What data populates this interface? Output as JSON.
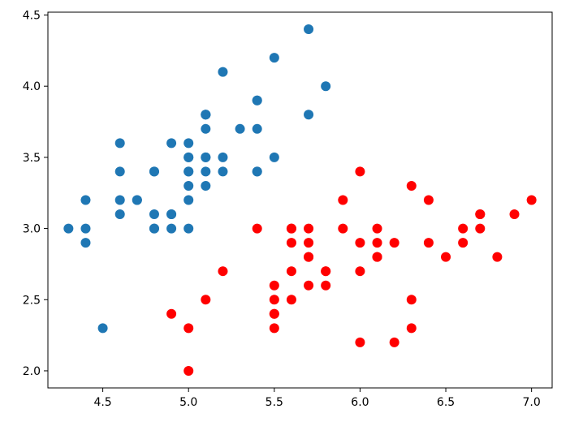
{
  "chart_data": {
    "type": "scatter",
    "title": "",
    "xlabel": "",
    "ylabel": "",
    "xlim": [
      4.18,
      7.12
    ],
    "ylim": [
      1.88,
      4.52
    ],
    "xticks": [
      4.5,
      5.0,
      5.5,
      6.0,
      6.5,
      7.0
    ],
    "xtick_labels": [
      "4.5",
      "5.0",
      "5.5",
      "6.0",
      "6.5",
      "7.0"
    ],
    "yticks": [
      2.0,
      2.5,
      3.0,
      3.5,
      4.0,
      4.5
    ],
    "ytick_labels": [
      "2.0",
      "2.5",
      "3.0",
      "3.5",
      "4.0",
      "4.5"
    ],
    "grid": false,
    "legend": "none",
    "series": [
      {
        "color": "#1f77b4",
        "points": [
          [
            5.1,
            3.5
          ],
          [
            4.9,
            3.0
          ],
          [
            4.7,
            3.2
          ],
          [
            4.6,
            3.1
          ],
          [
            5.0,
            3.6
          ],
          [
            5.4,
            3.9
          ],
          [
            4.6,
            3.4
          ],
          [
            5.0,
            3.4
          ],
          [
            4.4,
            2.9
          ],
          [
            4.9,
            3.1
          ],
          [
            5.4,
            3.7
          ],
          [
            4.8,
            3.4
          ],
          [
            4.8,
            3.0
          ],
          [
            4.3,
            3.0
          ],
          [
            5.8,
            4.0
          ],
          [
            5.7,
            4.4
          ],
          [
            5.4,
            3.9
          ],
          [
            5.1,
            3.5
          ],
          [
            5.7,
            3.8
          ],
          [
            5.1,
            3.8
          ],
          [
            5.4,
            3.4
          ],
          [
            5.1,
            3.7
          ],
          [
            4.6,
            3.6
          ],
          [
            5.1,
            3.3
          ],
          [
            4.8,
            3.4
          ],
          [
            5.0,
            3.0
          ],
          [
            5.0,
            3.4
          ],
          [
            5.2,
            3.5
          ],
          [
            5.2,
            3.4
          ],
          [
            4.7,
            3.2
          ],
          [
            4.8,
            3.1
          ],
          [
            5.4,
            3.4
          ],
          [
            5.2,
            4.1
          ],
          [
            5.5,
            4.2
          ],
          [
            4.9,
            3.1
          ],
          [
            5.0,
            3.2
          ],
          [
            5.5,
            3.5
          ],
          [
            4.9,
            3.6
          ],
          [
            4.4,
            3.0
          ],
          [
            5.1,
            3.4
          ],
          [
            5.0,
            3.5
          ],
          [
            4.5,
            2.3
          ],
          [
            4.4,
            3.2
          ],
          [
            5.0,
            3.5
          ],
          [
            5.1,
            3.8
          ],
          [
            4.8,
            3.0
          ],
          [
            5.1,
            3.8
          ],
          [
            4.6,
            3.2
          ],
          [
            5.3,
            3.7
          ],
          [
            5.0,
            3.3
          ]
        ]
      },
      {
        "color": "#ff0000",
        "points": [
          [
            7.0,
            3.2
          ],
          [
            6.4,
            3.2
          ],
          [
            6.9,
            3.1
          ],
          [
            5.5,
            2.3
          ],
          [
            6.5,
            2.8
          ],
          [
            5.7,
            2.8
          ],
          [
            6.3,
            3.3
          ],
          [
            4.9,
            2.4
          ],
          [
            6.6,
            2.9
          ],
          [
            5.2,
            2.7
          ],
          [
            5.0,
            2.0
          ],
          [
            5.9,
            3.0
          ],
          [
            6.0,
            2.2
          ],
          [
            6.1,
            2.9
          ],
          [
            5.6,
            2.9
          ],
          [
            6.7,
            3.1
          ],
          [
            5.6,
            3.0
          ],
          [
            5.8,
            2.7
          ],
          [
            6.2,
            2.2
          ],
          [
            5.6,
            2.5
          ],
          [
            5.9,
            3.2
          ],
          [
            6.1,
            2.8
          ],
          [
            6.3,
            2.5
          ],
          [
            6.1,
            2.8
          ],
          [
            6.4,
            2.9
          ],
          [
            6.6,
            3.0
          ],
          [
            6.8,
            2.8
          ],
          [
            6.7,
            3.0
          ],
          [
            6.0,
            2.9
          ],
          [
            5.7,
            2.6
          ],
          [
            5.5,
            2.4
          ],
          [
            5.5,
            2.4
          ],
          [
            5.8,
            2.7
          ],
          [
            6.0,
            2.7
          ],
          [
            5.4,
            3.0
          ],
          [
            6.0,
            3.4
          ],
          [
            6.7,
            3.1
          ],
          [
            6.3,
            2.3
          ],
          [
            5.6,
            3.0
          ],
          [
            5.5,
            2.5
          ],
          [
            5.5,
            2.6
          ],
          [
            6.1,
            3.0
          ],
          [
            5.8,
            2.6
          ],
          [
            5.0,
            2.3
          ],
          [
            5.6,
            2.7
          ],
          [
            5.7,
            3.0
          ],
          [
            5.7,
            2.9
          ],
          [
            6.2,
            2.9
          ],
          [
            5.1,
            2.5
          ],
          [
            5.7,
            2.8
          ]
        ]
      }
    ]
  }
}
